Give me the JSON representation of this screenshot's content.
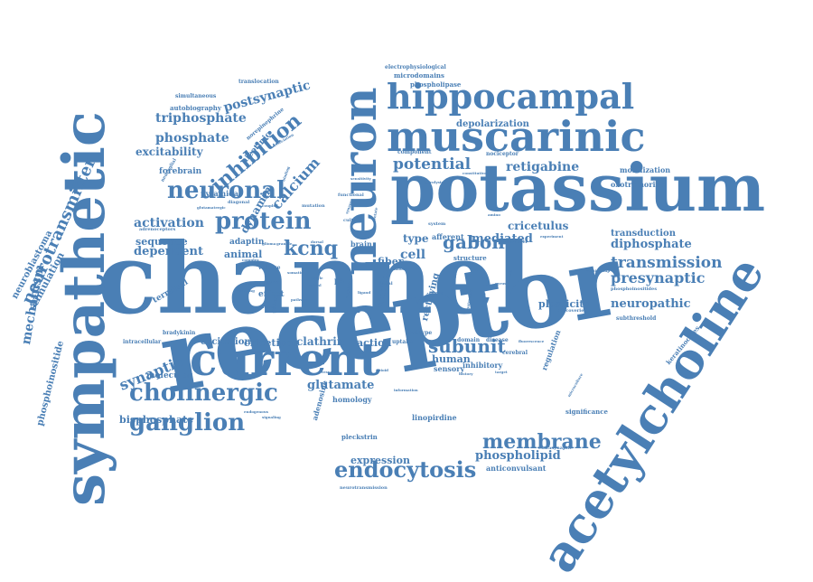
{
  "word_color": "#4a7fb5",
  "background": "#ffffff",
  "words": [
    {
      "text": "channel",
      "weight": 100
    },
    {
      "text": "receptor",
      "weight": 100
    },
    {
      "text": "potassium",
      "weight": 78
    },
    {
      "text": "sympathetic",
      "weight": 66
    },
    {
      "text": "acetylcholine",
      "weight": 62
    },
    {
      "text": "neuron",
      "weight": 58
    },
    {
      "text": "current",
      "weight": 46
    },
    {
      "text": "muscarinic",
      "weight": 42
    },
    {
      "text": "hippocampal",
      "weight": 38
    },
    {
      "text": "cholinergic",
      "weight": 26
    },
    {
      "text": "neuronal",
      "weight": 26
    },
    {
      "text": "protein",
      "weight": 26
    },
    {
      "text": "ganglion",
      "weight": 26
    },
    {
      "text": "endocytosis",
      "weight": 24
    },
    {
      "text": "membrane",
      "weight": 22
    },
    {
      "text": "inhibition",
      "weight": 22
    },
    {
      "text": "kcnq",
      "weight": 22
    },
    {
      "text": "gabon",
      "weight": 20
    },
    {
      "text": "subunit",
      "weight": 20
    },
    {
      "text": "potential",
      "weight": 18
    },
    {
      "text": "transmission",
      "weight": 18
    },
    {
      "text": "neurotransmitter",
      "weight": 18
    },
    {
      "text": "presynaptic",
      "weight": 16
    },
    {
      "text": "synaptic",
      "weight": 16
    },
    {
      "text": "calcium",
      "weight": 16
    },
    {
      "text": "mechanism",
      "weight": 14
    },
    {
      "text": "postsynaptic",
      "weight": 14
    },
    {
      "text": "triphosphate",
      "weight": 14
    },
    {
      "text": "phosphate",
      "weight": 14
    },
    {
      "text": "retigabine",
      "weight": 14
    },
    {
      "text": "activation",
      "weight": 14
    },
    {
      "text": "glutamate",
      "weight": 13
    },
    {
      "text": "phospholipid",
      "weight": 13
    },
    {
      "text": "neuropathic",
      "weight": 13
    },
    {
      "text": "diphosphate",
      "weight": 13
    },
    {
      "text": "mediated",
      "weight": 13
    },
    {
      "text": "dependent",
      "weight": 13
    },
    {
      "text": "cricetulus",
      "weight": 12
    },
    {
      "text": "excitability",
      "weight": 12
    },
    {
      "text": "dynamin",
      "weight": 12
    },
    {
      "text": "clathrin",
      "weight": 12
    },
    {
      "text": "cricetinae",
      "weight": 11
    },
    {
      "text": "plasticity",
      "weight": 11
    },
    {
      "text": "bisphosphate",
      "weight": 11
    },
    {
      "text": "expression",
      "weight": 11
    },
    {
      "text": "cell",
      "weight": 14
    },
    {
      "text": "type",
      "weight": 12
    },
    {
      "text": "sequence",
      "weight": 11
    },
    {
      "text": "action",
      "weight": 11
    },
    {
      "text": "human",
      "weight": 11
    },
    {
      "text": "animal",
      "weight": 11
    },
    {
      "text": "fiber",
      "weight": 11
    },
    {
      "text": "excitation",
      "weight": 10
    },
    {
      "text": "stimulation",
      "weight": 11
    },
    {
      "text": "neuroblastoma",
      "weight": 10
    },
    {
      "text": "phosphoinositide",
      "weight": 10
    },
    {
      "text": "depolarization",
      "weight": 10
    },
    {
      "text": "transduction",
      "weight": 10
    },
    {
      "text": "forebrain",
      "weight": 9
    },
    {
      "text": "adaptin",
      "weight": 9
    },
    {
      "text": "terminal",
      "weight": 9
    },
    {
      "text": "effect",
      "weight": 9
    },
    {
      "text": "molecular",
      "weight": 9
    },
    {
      "text": "nicotinic",
      "weight": 9
    },
    {
      "text": "rectifying",
      "weight": 10
    },
    {
      "text": "function",
      "weight": 9
    },
    {
      "text": "pyramidal",
      "weight": 8
    },
    {
      "text": "mobilization",
      "weight": 8
    },
    {
      "text": "oxotremorine",
      "weight": 8
    },
    {
      "text": "linopirdine",
      "weight": 8
    },
    {
      "text": "anticonvulsant",
      "weight": 8
    },
    {
      "text": "homology",
      "weight": 8
    },
    {
      "text": "sensory",
      "weight": 8
    },
    {
      "text": "inhibitory",
      "weight": 8
    },
    {
      "text": "regulation",
      "weight": 8
    },
    {
      "text": "adenosine",
      "weight": 8
    },
    {
      "text": "significance",
      "weight": 7
    },
    {
      "text": "pleckstrin",
      "weight": 7
    },
    {
      "text": "keratinocytes",
      "weight": 7
    },
    {
      "text": "autobiography",
      "weight": 7
    },
    {
      "text": "phospholipase",
      "weight": 7
    },
    {
      "text": "microdomains",
      "weight": 7
    },
    {
      "text": "electrophysiological",
      "weight": 6
    },
    {
      "text": "translocation",
      "weight": 6
    },
    {
      "text": "simultaneous",
      "weight": 6
    },
    {
      "text": "afferent",
      "weight": 8
    },
    {
      "text": "brain",
      "weight": 8
    },
    {
      "text": "pain",
      "weight": 8
    },
    {
      "text": "structure",
      "weight": 7
    },
    {
      "text": "voltage",
      "weight": 6
    },
    {
      "text": "norepinephrine",
      "weight": 6
    },
    {
      "text": "nociceptor",
      "weight": 6
    },
    {
      "text": "component",
      "weight": 6
    },
    {
      "text": "subtype",
      "weight": 6
    },
    {
      "text": "uptake",
      "weight": 6
    },
    {
      "text": "alzheimer",
      "weight": 6
    },
    {
      "text": "domain",
      "weight": 6
    },
    {
      "text": "disease",
      "weight": 6
    },
    {
      "text": "cerebral",
      "weight": 6
    },
    {
      "text": "bradykinin",
      "weight": 6
    },
    {
      "text": "intracellular",
      "weight": 6
    },
    {
      "text": "subthreshold",
      "weight": 6
    },
    {
      "text": "phosphoinositides",
      "weight": 5
    },
    {
      "text": "discoveries",
      "weight": 5
    },
    {
      "text": "extrasynaptic",
      "weight": 5
    },
    {
      "text": "neurotransmission",
      "weight": 5
    },
    {
      "text": "adrenoceptors",
      "weight": 5
    },
    {
      "text": "glutamatergic",
      "weight": 4
    },
    {
      "text": "neuroglial",
      "weight": 5
    },
    {
      "text": "diagonal",
      "weight": 5
    },
    {
      "text": "coupled",
      "weight": 4
    },
    {
      "text": "mutation",
      "weight": 5
    },
    {
      "text": "culture",
      "weight": 5
    },
    {
      "text": "sensitivity",
      "weight": 4
    },
    {
      "text": "functional",
      "weight": 5
    },
    {
      "text": "hydrolysis",
      "weight": 4
    },
    {
      "text": "constitutive",
      "weight": 4
    },
    {
      "text": "system",
      "weight": 5
    },
    {
      "text": "turnover",
      "weight": 5
    },
    {
      "text": "basal",
      "weight": 5
    },
    {
      "text": "fluorescence",
      "weight": 4
    },
    {
      "text": "microculture",
      "weight": 4
    },
    {
      "text": "relationship",
      "weight": 4
    },
    {
      "text": "signaling",
      "weight": 4
    },
    {
      "text": "endogenous",
      "weight": 4
    },
    {
      "text": "response",
      "weight": 4
    },
    {
      "text": "information",
      "weight": 4
    },
    {
      "text": "glioma",
      "weight": 4
    },
    {
      "text": "granule",
      "weight": 4
    },
    {
      "text": "dorsal",
      "weight": 4
    },
    {
      "text": "binding",
      "weight": 4
    },
    {
      "text": "association",
      "weight": 4
    },
    {
      "text": "cultured",
      "weight": 4
    },
    {
      "text": "tertiary",
      "weight": 4
    },
    {
      "text": "single",
      "weight": 4
    },
    {
      "text": "spinal",
      "weight": 4
    },
    {
      "text": "gabaa",
      "weight": 6
    },
    {
      "text": "synapse",
      "weight": 4
    },
    {
      "text": "dentate",
      "weight": 4
    },
    {
      "text": "experiment",
      "weight": 4
    },
    {
      "text": "recording",
      "weight": 4
    },
    {
      "text": "complex",
      "weight": 4
    },
    {
      "text": "amino",
      "weight": 4
    },
    {
      "text": "lipid",
      "weight": 4
    },
    {
      "text": "gyrus",
      "weight": 4
    },
    {
      "text": "serotonin",
      "weight": 4
    },
    {
      "text": "amyloid",
      "weight": 4
    },
    {
      "text": "ligand",
      "weight": 4
    },
    {
      "text": "assay",
      "weight": 4
    },
    {
      "text": "mouse",
      "weight": 4
    },
    {
      "text": "neurite",
      "weight": 4
    },
    {
      "text": "outgrowth",
      "weight": 4
    },
    {
      "text": "history",
      "weight": 4
    },
    {
      "text": "target",
      "weight": 4
    },
    {
      "text": "opioid",
      "weight": 4
    },
    {
      "text": "somatic",
      "weight": 4
    },
    {
      "text": "pathway",
      "weight": 4
    },
    {
      "text": "composition",
      "weight": 4
    }
  ]
}
